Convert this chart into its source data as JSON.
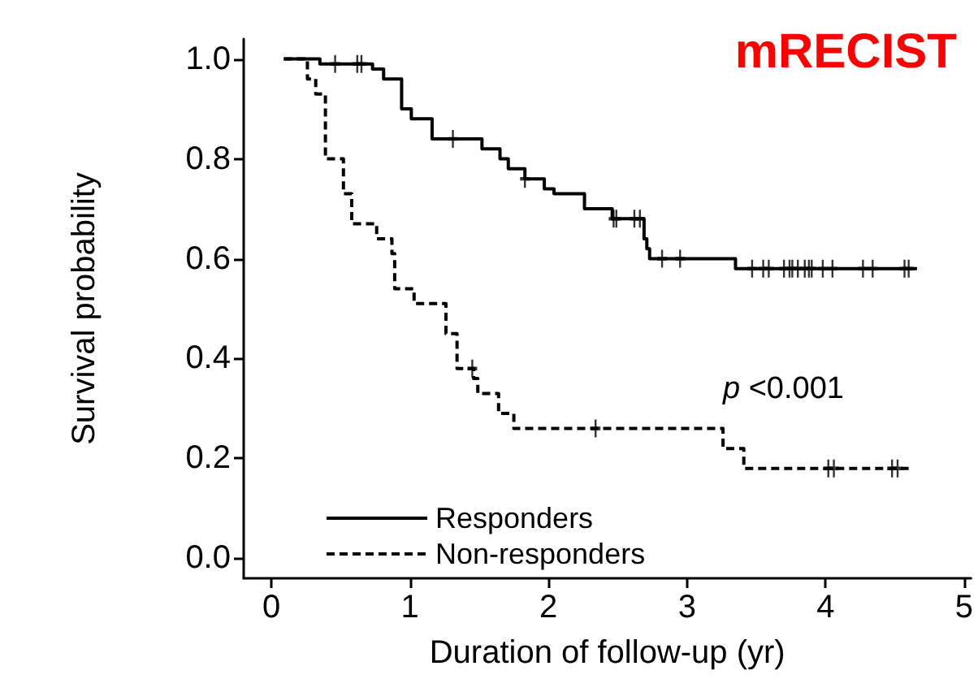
{
  "chart_data": {
    "type": "step",
    "title": "mRECIST",
    "xlabel": "Duration of follow-up (yr)",
    "ylabel": "Survival probability",
    "annotations": [
      "p <0.001"
    ],
    "xlim": [
      -0.2,
      5.05
    ],
    "xticks": [
      0,
      1,
      2,
      3,
      4,
      5
    ],
    "ylim": [
      -0.04,
      1.04
    ],
    "yticks": [
      {
        "value": 0,
        "label": "0.0"
      },
      {
        "value": 0.2,
        "label": "0.2"
      },
      {
        "value": 0.4,
        "label": "0.4"
      },
      {
        "value": 0.6,
        "label": "0.6"
      },
      {
        "value": 0.8,
        "label": "0.8"
      },
      {
        "value": 1,
        "label": "1.0"
      }
    ],
    "grid": false,
    "legend": "bottom left",
    "marker": "none",
    "series": [
      {
        "name": "Responders",
        "color": "#000000",
        "line_style": "solid",
        "x": [
          0.09,
          0.35,
          0.73,
          0.81,
          0.94,
          1.01,
          1.16,
          1.52,
          1.65,
          1.71,
          1.83,
          1.97,
          2.04,
          2.26,
          2.46,
          2.69,
          2.71,
          2.73,
          3.35,
          4.66
        ],
        "values": [
          1.0,
          0.99,
          0.98,
          0.96,
          0.9,
          0.88,
          0.84,
          0.82,
          0.8,
          0.78,
          0.76,
          0.74,
          0.73,
          0.7,
          0.68,
          0.64,
          0.62,
          0.6,
          0.58,
          0.58
        ]
      },
      {
        "name": "Non-responders",
        "color": "#000000",
        "line_style": "dashed",
        "x": [
          0.09,
          0.26,
          0.32,
          0.39,
          0.52,
          0.58,
          0.76,
          0.87,
          0.89,
          1.03,
          1.26,
          1.34,
          1.46,
          1.49,
          1.64,
          1.75,
          3.26,
          3.41,
          4.6
        ],
        "values": [
          1.0,
          0.96,
          0.93,
          0.8,
          0.73,
          0.67,
          0.64,
          0.61,
          0.54,
          0.51,
          0.45,
          0.38,
          0.36,
          0.33,
          0.29,
          0.26,
          0.22,
          0.18,
          0.18
        ]
      },
      {
        "type": "scatter",
        "marker": "cross",
        "color": "#000000",
        "x": [
          0.46,
          0.62,
          0.65,
          1.31,
          1.83,
          2.47,
          2.49,
          2.62,
          2.66,
          2.82,
          2.95,
          3.47,
          3.55,
          3.59,
          3.7,
          3.74,
          3.76,
          3.8,
          3.85,
          3.88,
          3.9,
          3.98,
          4.05,
          4.27,
          4.34,
          4.57,
          4.6
        ],
        "values": [
          0.99,
          0.99,
          0.99,
          0.84,
          0.76,
          0.68,
          0.68,
          0.68,
          0.68,
          0.6,
          0.6,
          0.58,
          0.58,
          0.58,
          0.58,
          0.58,
          0.58,
          0.58,
          0.58,
          0.58,
          0.58,
          0.58,
          0.58,
          0.58,
          0.58,
          0.58,
          0.58
        ]
      },
      {
        "type": "scatter",
        "marker": "cross",
        "color": "#000000",
        "x": [
          1.45,
          2.34,
          4.02,
          4.06,
          4.48,
          4.52
        ],
        "values": [
          0.38,
          0.26,
          0.18,
          0.18,
          0.18,
          0.18
        ]
      }
    ]
  }
}
